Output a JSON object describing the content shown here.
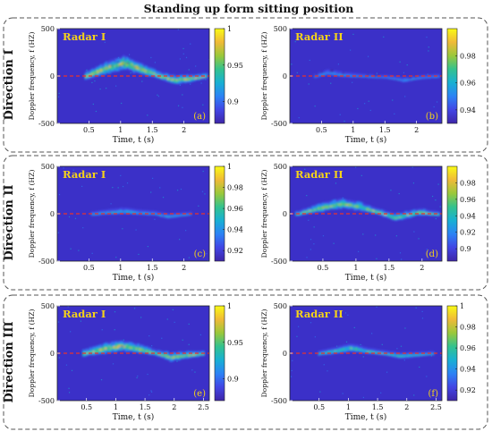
{
  "title": "Standing up form sitting position",
  "colors": {
    "background_field": "#3b30c8",
    "frame": "#555555",
    "zero_line": "#e8322d",
    "label_yellow": "#f5d21a",
    "colormap": [
      "#3e26a8",
      "#4245e4",
      "#2c82f5",
      "#18b0d3",
      "#33c28e",
      "#9ac83a",
      "#f0ba37",
      "#f9fb15"
    ]
  },
  "panels": [
    {
      "id": "a",
      "row": "Direction I",
      "radar": "Radar I",
      "tag": "(a)",
      "xlabel": "Time, t (s)",
      "ylabel": "Doppler frequency, f (HZ)",
      "x_range": [
        0,
        2.4
      ],
      "y_range": [
        -500,
        500
      ],
      "xticks": [
        "0.5",
        "1",
        "1.5",
        "2"
      ],
      "xtick_values": [
        0.5,
        1,
        1.5,
        2
      ],
      "yticks": [
        "500",
        "0",
        "-500"
      ],
      "ytick_values": [
        500,
        0,
        -500
      ],
      "colorbar": {
        "range": [
          0.87,
          1
        ],
        "ticks": [
          "1",
          "0.95",
          "0.9"
        ],
        "tick_values": [
          1,
          0.95,
          0.9
        ]
      },
      "signature": [
        {
          "t": 0.45,
          "f": 0
        },
        {
          "t": 0.8,
          "f": 90
        },
        {
          "t": 1.05,
          "f": 140
        },
        {
          "t": 1.35,
          "f": 70
        },
        {
          "t": 1.6,
          "f": 10
        },
        {
          "t": 1.85,
          "f": -40
        },
        {
          "t": 2.15,
          "f": -20
        },
        {
          "t": 2.35,
          "f": 0
        }
      ],
      "spread": [
        30,
        50,
        60,
        45,
        25,
        35,
        25,
        15
      ],
      "strength": 0.95
    },
    {
      "id": "b",
      "row": "Direction I",
      "radar": "Radar II",
      "tag": "(b)",
      "xlabel": "Time, t (s)",
      "ylabel": "Doppler frequency, f (HZ)",
      "x_range": [
        0,
        2.4
      ],
      "y_range": [
        -500,
        500
      ],
      "xticks": [
        "0.5",
        "1",
        "1.5",
        "2"
      ],
      "xtick_values": [
        0.5,
        1,
        1.5,
        2
      ],
      "yticks": [
        "500",
        "0",
        "-500"
      ],
      "ytick_values": [
        500,
        0,
        -500
      ],
      "colorbar": {
        "range": [
          0.93,
          1
        ],
        "ticks": [
          "0.98",
          "0.96",
          "0.94"
        ],
        "tick_values": [
          0.98,
          0.96,
          0.94
        ]
      },
      "signature": [
        {
          "t": 0.4,
          "f": 0
        },
        {
          "t": 0.6,
          "f": 40
        },
        {
          "t": 0.85,
          "f": 15
        },
        {
          "t": 1.2,
          "f": 0
        },
        {
          "t": 1.55,
          "f": -10
        },
        {
          "t": 1.8,
          "f": -40
        },
        {
          "t": 2.1,
          "f": -10
        },
        {
          "t": 2.35,
          "f": 0
        }
      ],
      "spread": [
        10,
        20,
        15,
        8,
        8,
        15,
        10,
        8
      ],
      "strength": 0.55
    },
    {
      "id": "c",
      "row": "Direction II",
      "radar": "Radar I",
      "tag": "(c)",
      "xlabel": "Time, t (s)",
      "ylabel": "Doppler frequency, f (HZ)",
      "x_range": [
        0,
        2.4
      ],
      "y_range": [
        -500,
        500
      ],
      "xticks": [
        "0.5",
        "1",
        "1.5",
        "2"
      ],
      "xtick_values": [
        0.5,
        1,
        1.5,
        2
      ],
      "yticks": [
        "500",
        "0",
        "-500"
      ],
      "ytick_values": [
        500,
        0,
        -500
      ],
      "colorbar": {
        "range": [
          0.91,
          1
        ],
        "ticks": [
          "1",
          "0.98",
          "0.96",
          "0.94",
          "0.92"
        ],
        "tick_values": [
          1,
          0.98,
          0.96,
          0.94,
          0.92
        ]
      },
      "signature": [
        {
          "t": 0.55,
          "f": 0
        },
        {
          "t": 0.85,
          "f": 20
        },
        {
          "t": 1.05,
          "f": 30
        },
        {
          "t": 1.3,
          "f": 15
        },
        {
          "t": 1.55,
          "f": 5
        },
        {
          "t": 1.75,
          "f": -25
        },
        {
          "t": 1.95,
          "f": -10
        },
        {
          "t": 2.1,
          "f": 0
        }
      ],
      "spread": [
        10,
        18,
        22,
        15,
        12,
        15,
        10,
        8
      ],
      "strength": 0.6
    },
    {
      "id": "d",
      "row": "Direction II",
      "radar": "Radar II",
      "tag": "(d)",
      "xlabel": "Time, t (s)",
      "ylabel": "Doppler frequency, f (HZ)",
      "x_range": [
        0,
        2.3
      ],
      "y_range": [
        -500,
        500
      ],
      "xticks": [
        "0.5",
        "1",
        "1.5",
        "2"
      ],
      "xtick_values": [
        0.5,
        1,
        1.5,
        2
      ],
      "yticks": [
        "500",
        "0",
        "-500"
      ],
      "ytick_values": [
        500,
        0,
        -500
      ],
      "colorbar": {
        "range": [
          0.885,
          1
        ],
        "ticks": [
          "0.98",
          "0.96",
          "0.94",
          "0.92",
          "0.9"
        ],
        "tick_values": [
          0.98,
          0.96,
          0.94,
          0.92,
          0.9
        ]
      },
      "signature": [
        {
          "t": 0.1,
          "f": 0
        },
        {
          "t": 0.5,
          "f": 70
        },
        {
          "t": 0.8,
          "f": 110
        },
        {
          "t": 1.05,
          "f": 80
        },
        {
          "t": 1.35,
          "f": 20
        },
        {
          "t": 1.6,
          "f": -40
        },
        {
          "t": 1.95,
          "f": 20
        },
        {
          "t": 2.25,
          "f": 0
        }
      ],
      "spread": [
        15,
        35,
        40,
        35,
        20,
        30,
        25,
        15
      ],
      "strength": 0.9
    },
    {
      "id": "e",
      "row": "Direction III",
      "radar": "Radar I",
      "tag": "(e)",
      "xlabel": "Time, t (s)",
      "ylabel": "Doppler frequency, f (HZ)",
      "x_range": [
        0,
        2.6
      ],
      "y_range": [
        -500,
        500
      ],
      "xticks": [
        "0.5",
        "1",
        "1.5",
        "2",
        "2.5"
      ],
      "xtick_values": [
        0.5,
        1,
        1.5,
        2,
        2.5
      ],
      "yticks": [
        "500",
        "0",
        "-500"
      ],
      "ytick_values": [
        500,
        0,
        -500
      ],
      "colorbar": {
        "range": [
          0.87,
          1
        ],
        "ticks": [
          "1",
          "0.95",
          "0.9"
        ],
        "tick_values": [
          1,
          0.95,
          0.9
        ]
      },
      "signature": [
        {
          "t": 0.45,
          "f": 0
        },
        {
          "t": 0.8,
          "f": 50
        },
        {
          "t": 1.1,
          "f": 80
        },
        {
          "t": 1.4,
          "f": 50
        },
        {
          "t": 1.7,
          "f": 5
        },
        {
          "t": 1.95,
          "f": -40
        },
        {
          "t": 2.25,
          "f": -15
        },
        {
          "t": 2.5,
          "f": 0
        }
      ],
      "spread": [
        25,
        40,
        45,
        35,
        20,
        35,
        25,
        15
      ],
      "strength": 0.95
    },
    {
      "id": "f",
      "row": "Direction III",
      "radar": "Radar II",
      "tag": "(f)",
      "xlabel": "Time, t (s)",
      "ylabel": "Doppler frequency, f (HZ)",
      "x_range": [
        0,
        2.6
      ],
      "y_range": [
        -500,
        500
      ],
      "xticks": [
        "0.5",
        "1",
        "1.5",
        "2",
        "2.5"
      ],
      "xtick_values": [
        0.5,
        1,
        1.5,
        2,
        2.5
      ],
      "yticks": [
        "500",
        "0",
        "-500"
      ],
      "ytick_values": [
        500,
        0,
        -500
      ],
      "colorbar": {
        "range": [
          0.91,
          1
        ],
        "ticks": [
          "1",
          "0.98",
          "0.96",
          "0.94",
          "0.92"
        ],
        "tick_values": [
          1,
          0.98,
          0.96,
          0.94,
          0.92
        ]
      },
      "signature": [
        {
          "t": 0.5,
          "f": 0
        },
        {
          "t": 0.8,
          "f": 30
        },
        {
          "t": 1.05,
          "f": 60
        },
        {
          "t": 1.35,
          "f": 25
        },
        {
          "t": 1.6,
          "f": 5
        },
        {
          "t": 1.9,
          "f": -25
        },
        {
          "t": 2.2,
          "f": -10
        },
        {
          "t": 2.45,
          "f": 0
        }
      ],
      "spread": [
        15,
        25,
        30,
        20,
        15,
        20,
        15,
        10
      ],
      "strength": 0.75
    }
  ],
  "chart_data": [
    {
      "type": "heatmap",
      "title": "",
      "panel": "(a)",
      "row": "Direction I",
      "series": [
        {
          "name": "Radar I",
          "x": [
            0.45,
            0.8,
            1.05,
            1.35,
            1.6,
            1.85,
            2.15,
            2.35
          ],
          "y": [
            0,
            90,
            140,
            70,
            10,
            -40,
            -20,
            0
          ]
        }
      ],
      "xlabel": "Time, t (s)",
      "ylabel": "Doppler frequency, f (HZ)",
      "xlim": [
        0,
        2.4
      ],
      "ylim": [
        -500,
        500
      ],
      "colorbar_ticks": [
        1,
        0.95,
        0.9
      ],
      "grid": false
    },
    {
      "type": "heatmap",
      "title": "",
      "panel": "(b)",
      "row": "Direction I",
      "series": [
        {
          "name": "Radar II",
          "x": [
            0.4,
            0.6,
            0.85,
            1.2,
            1.55,
            1.8,
            2.1,
            2.35
          ],
          "y": [
            0,
            40,
            15,
            0,
            -10,
            -40,
            -10,
            0
          ]
        }
      ],
      "xlabel": "Time, t (s)",
      "ylabel": "Doppler frequency, f (HZ)",
      "xlim": [
        0,
        2.4
      ],
      "ylim": [
        -500,
        500
      ],
      "colorbar_ticks": [
        0.98,
        0.96,
        0.94
      ],
      "grid": false
    },
    {
      "type": "heatmap",
      "title": "",
      "panel": "(c)",
      "row": "Direction II",
      "series": [
        {
          "name": "Radar I",
          "x": [
            0.55,
            0.85,
            1.05,
            1.3,
            1.55,
            1.75,
            1.95,
            2.1
          ],
          "y": [
            0,
            20,
            30,
            15,
            5,
            -25,
            -10,
            0
          ]
        }
      ],
      "xlabel": "Time, t (s)",
      "ylabel": "Doppler frequency, f (HZ)",
      "xlim": [
        0,
        2.4
      ],
      "ylim": [
        -500,
        500
      ],
      "colorbar_ticks": [
        1,
        0.98,
        0.96,
        0.94,
        0.92
      ],
      "grid": false
    },
    {
      "type": "heatmap",
      "title": "",
      "panel": "(d)",
      "row": "Direction II",
      "series": [
        {
          "name": "Radar II",
          "x": [
            0.1,
            0.5,
            0.8,
            1.05,
            1.35,
            1.6,
            1.95,
            2.25
          ],
          "y": [
            0,
            70,
            110,
            80,
            20,
            -40,
            20,
            0
          ]
        }
      ],
      "xlabel": "Time, t (s)",
      "ylabel": "Doppler frequency, f (HZ)",
      "xlim": [
        0,
        2.3
      ],
      "ylim": [
        -500,
        500
      ],
      "colorbar_ticks": [
        0.98,
        0.96,
        0.94,
        0.92,
        0.9
      ],
      "grid": false
    },
    {
      "type": "heatmap",
      "title": "",
      "panel": "(e)",
      "row": "Direction III",
      "series": [
        {
          "name": "Radar I",
          "x": [
            0.45,
            0.8,
            1.1,
            1.4,
            1.7,
            1.95,
            2.25,
            2.5
          ],
          "y": [
            0,
            50,
            80,
            50,
            5,
            -40,
            -15,
            0
          ]
        }
      ],
      "xlabel": "Time, t (s)",
      "ylabel": "Doppler frequency, f (HZ)",
      "xlim": [
        0,
        2.6
      ],
      "ylim": [
        -500,
        500
      ],
      "colorbar_ticks": [
        1,
        0.95,
        0.9
      ],
      "grid": false
    },
    {
      "type": "heatmap",
      "title": "",
      "panel": "(f)",
      "row": "Direction III",
      "series": [
        {
          "name": "Radar II",
          "x": [
            0.5,
            0.8,
            1.05,
            1.35,
            1.6,
            1.9,
            2.2,
            2.45
          ],
          "y": [
            0,
            30,
            60,
            25,
            5,
            -25,
            -10,
            0
          ]
        }
      ],
      "xlabel": "Time, t (s)",
      "ylabel": "Doppler frequency, f (HZ)",
      "xlim": [
        0,
        2.6
      ],
      "ylim": [
        -500,
        500
      ],
      "colorbar_ticks": [
        1,
        0.98,
        0.96,
        0.94,
        0.92
      ],
      "grid": false
    }
  ]
}
